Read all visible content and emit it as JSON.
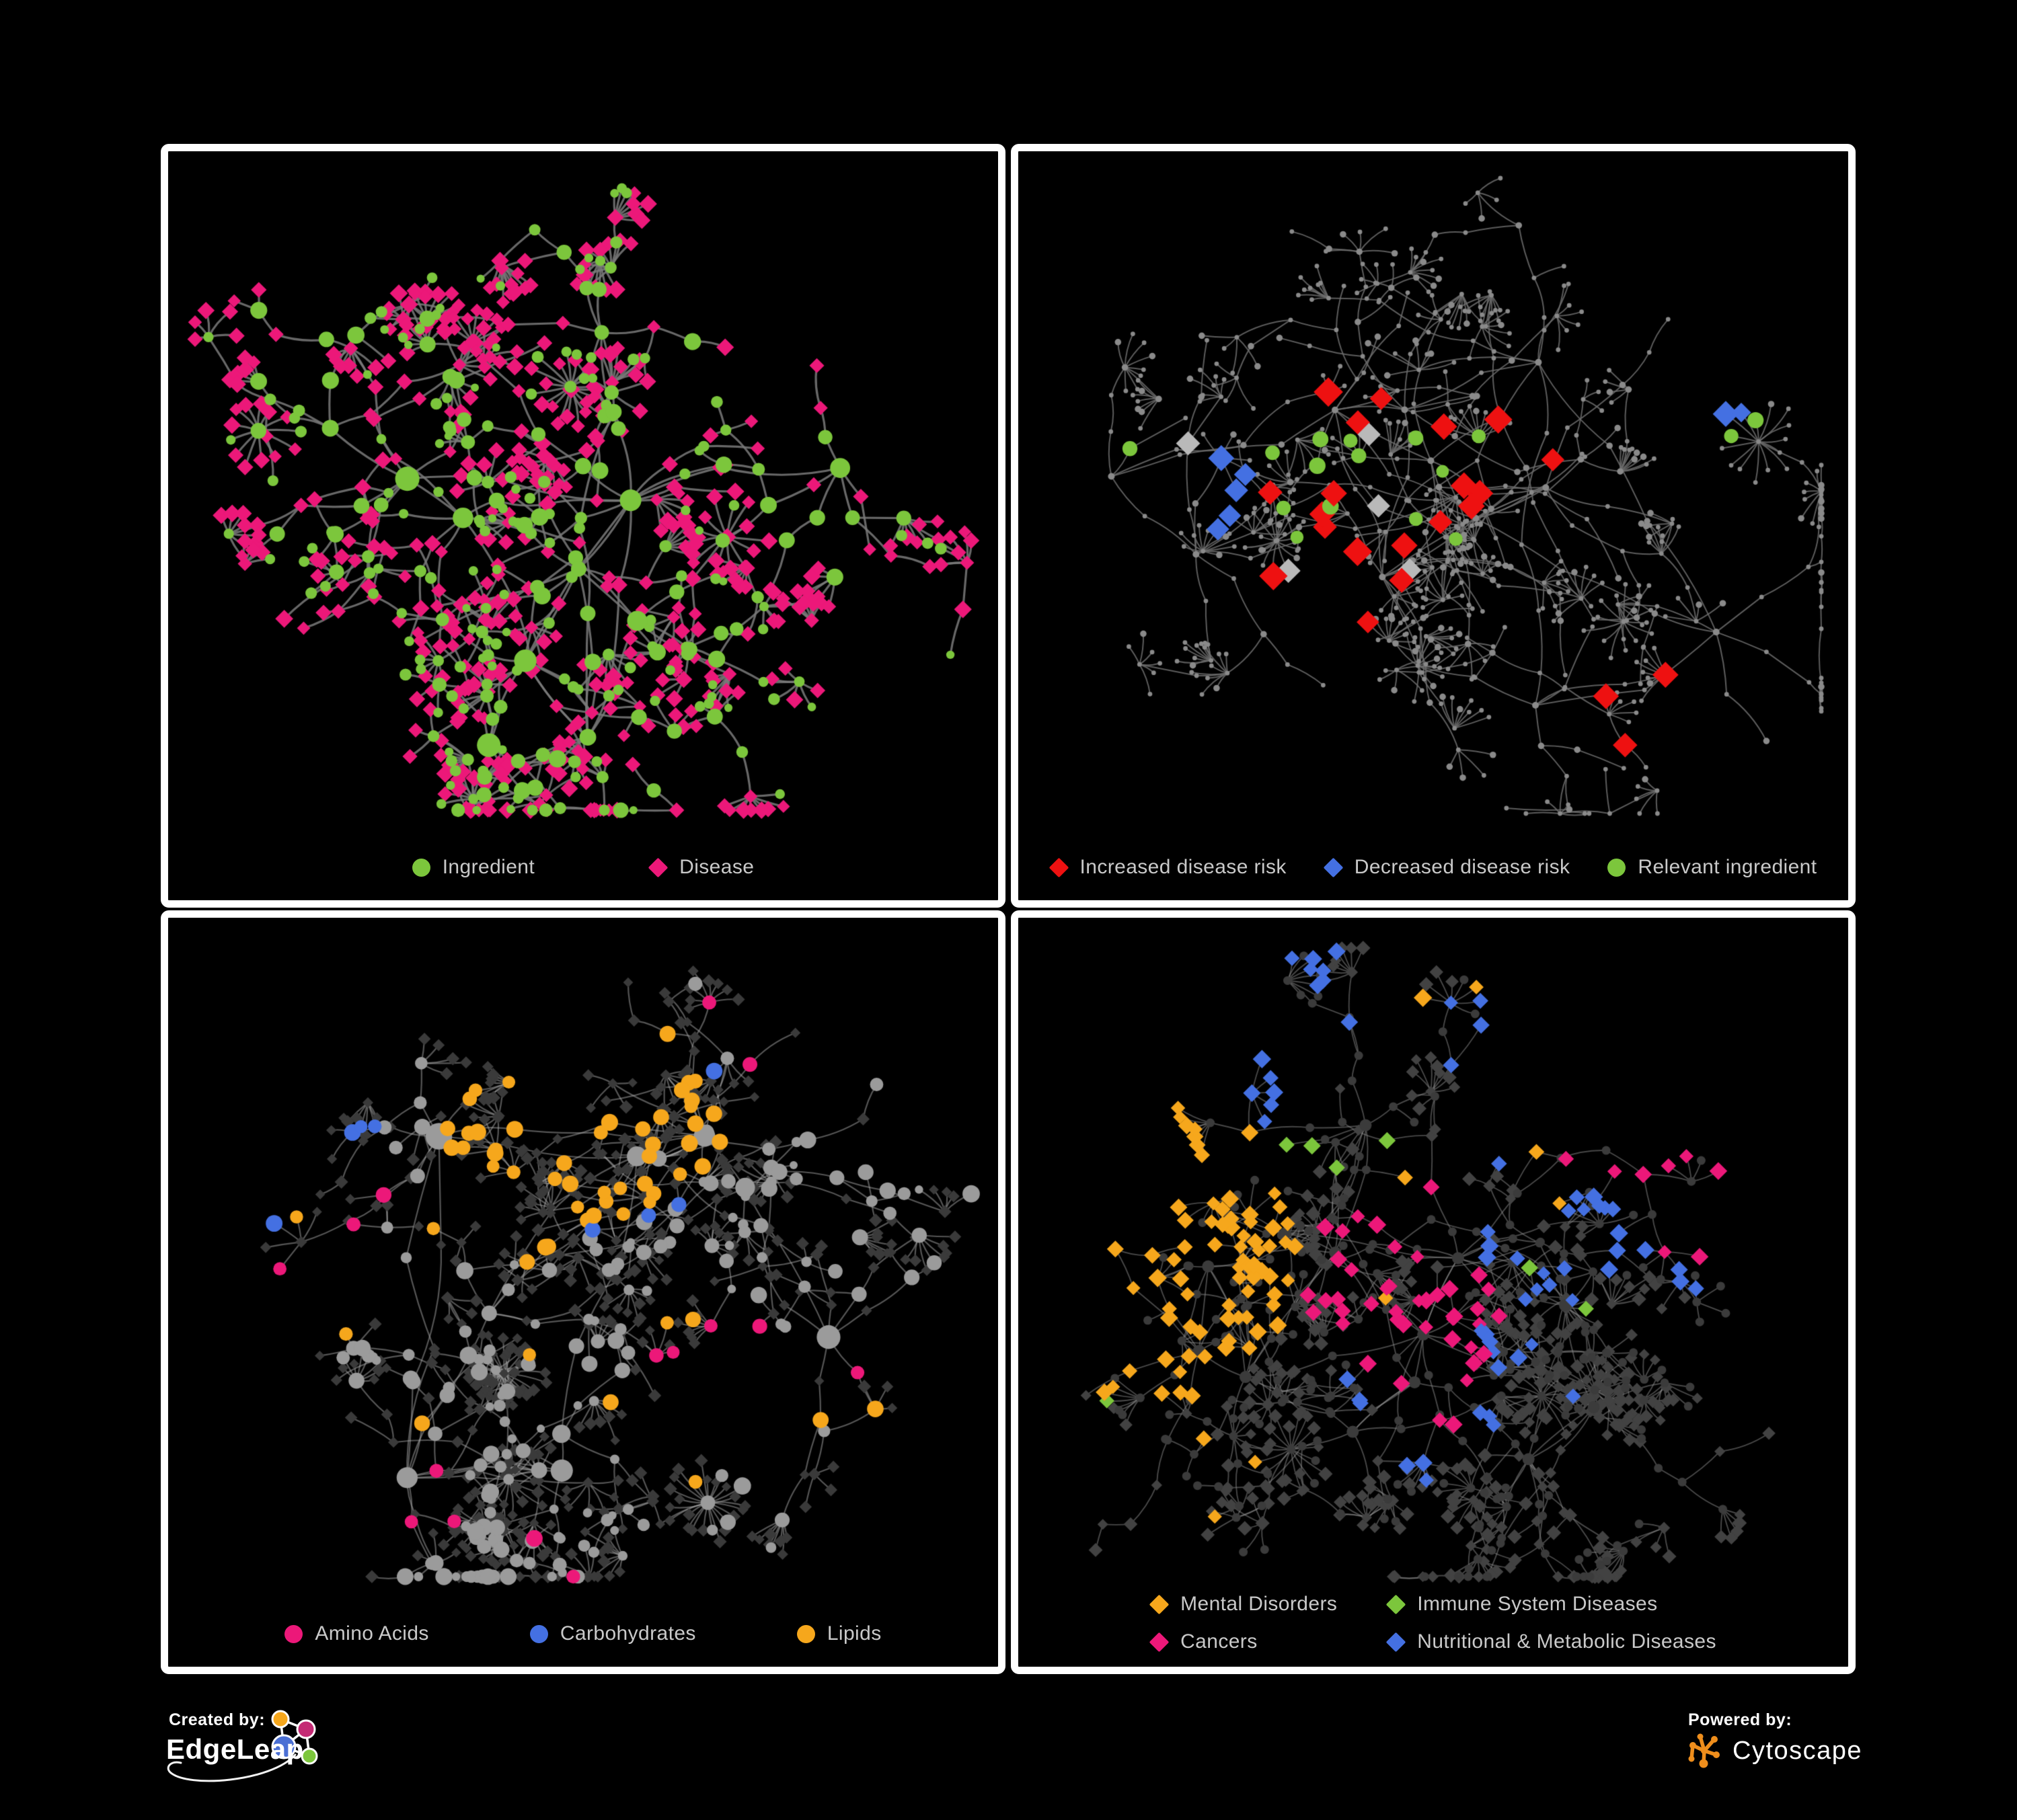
{
  "background": "#000000",
  "panel_border_color": "#ffffff",
  "legend_text_color": "#c9c9c9",
  "colors": {
    "green": "#7cc63c",
    "pink": "#ec1879",
    "red": "#ee1111",
    "blue": "#4470e2",
    "orange": "#f6a71c",
    "silver": "#b9b9b9",
    "gray_node": "#9b9b9b",
    "dark_node": "#3a3a3a"
  },
  "footer": {
    "created_by": "Created by:",
    "created_brand": "EdgeLeap",
    "powered_by": "Powered by:",
    "powered_brand": "Cytoscape",
    "cytoscape_orange": "#ef8e1c"
  },
  "panels": [
    {
      "id": "ingredient-disease",
      "legend": {
        "gap": 170,
        "items": [
          {
            "shape": "circle",
            "color": "#7cc63c",
            "label": "Ingredient"
          },
          {
            "shape": "diamond",
            "color": "#ec1879",
            "label": "Disease"
          }
        ]
      },
      "net": {
        "seed": 7,
        "hubs": 11,
        "branches": 4,
        "step": 64,
        "side": 0.33,
        "fan": 0.5,
        "fanMax": 6,
        "bursts": 3,
        "burstMax": 20,
        "area": [
          40,
          50,
          1154,
          930
        ],
        "edge": {
          "color": "#7a7a7a",
          "alpha": 0.85,
          "width": 3.2
        },
        "style": "bipartite",
        "ingredient": {
          "color": "#7cc63c"
        },
        "disease": {
          "color": "#ec1879",
          "size": 16
        },
        "marks": []
      }
    },
    {
      "id": "disease-risk",
      "legend": {
        "gap": 56,
        "items": [
          {
            "shape": "diamond",
            "color": "#ee1111",
            "label": "Increased disease risk"
          },
          {
            "shape": "diamond",
            "color": "#4470e2",
            "label": "Decreased disease risk"
          },
          {
            "shape": "circle",
            "color": "#7cc63c",
            "label": "Relevant ingredient"
          }
        ]
      },
      "net": {
        "seed": 23,
        "hubs": 13,
        "branches": 4,
        "step": 76,
        "side": 0.3,
        "fan": 0.55,
        "fanMax": 7,
        "bursts": 2,
        "burstMax": 16,
        "area": [
          40,
          40,
          1154,
          945
        ],
        "edge": {
          "color": "#6c6c6c",
          "alpha": 0.85,
          "width": 2.0
        },
        "style": "plain",
        "base": {
          "color": "#8a8a8a",
          "r": 3.4
        },
        "marks": [
          {
            "shape": "diamond",
            "color": "#ee1111",
            "count": 19,
            "size": 27,
            "spread": 0.07,
            "anchors": [
              [
                0.3,
                0.38
              ],
              [
                0.45,
                0.42
              ],
              [
                0.36,
                0.55
              ],
              [
                0.52,
                0.5
              ],
              [
                0.6,
                0.45
              ],
              [
                0.42,
                0.63
              ]
            ]
          },
          {
            "shape": "diamond",
            "color": "#ee1111",
            "count": 3,
            "size": 27,
            "spread": 0.04,
            "anchors": [
              [
                0.72,
                0.78
              ],
              [
                0.78,
                0.85
              ]
            ]
          },
          {
            "shape": "diamond",
            "color": "#4470e2",
            "count": 5,
            "size": 24,
            "spread": 0.05,
            "anchors": [
              [
                0.22,
                0.48
              ],
              [
                0.26,
                0.56
              ]
            ]
          },
          {
            "shape": "diamond",
            "color": "#4470e2",
            "count": 2,
            "size": 24,
            "spread": 0.012,
            "anchors": [
              [
                0.86,
                0.35
              ]
            ]
          },
          {
            "shape": "diamond",
            "color": "#b9b9b9",
            "count": 5,
            "size": 24,
            "spread": 0.05,
            "anchors": [
              [
                0.2,
                0.43
              ],
              [
                0.3,
                0.6
              ],
              [
                0.47,
                0.57
              ],
              [
                0.36,
                0.34
              ]
            ]
          },
          {
            "shape": "circle",
            "color": "#7cc63c",
            "count": 16,
            "size": 11,
            "spread": 0.1,
            "anchors": [
              [
                0.2,
                0.42
              ],
              [
                0.3,
                0.37
              ],
              [
                0.45,
                0.5
              ],
              [
                0.27,
                0.52
              ],
              [
                0.55,
                0.42
              ],
              [
                0.83,
                0.37
              ]
            ]
          }
        ]
      }
    },
    {
      "id": "nutrient-classes",
      "legend": {
        "gap": 150,
        "items": [
          {
            "shape": "circle",
            "color": "#ec1879",
            "label": "Amino Acids"
          },
          {
            "shape": "circle",
            "color": "#4470e2",
            "label": "Carbohydrates"
          },
          {
            "shape": "circle",
            "color": "#f6a71c",
            "label": "Lipids"
          }
        ]
      },
      "net": {
        "seed": 41,
        "hubs": 11,
        "branches": 4,
        "step": 66,
        "side": 0.33,
        "fan": 0.5,
        "fanMax": 6,
        "bursts": 3,
        "burstMax": 30,
        "area": [
          40,
          50,
          1154,
          930
        ],
        "edge": {
          "color": "#a9a9a9",
          "alpha": 0.5,
          "width": 2.2
        },
        "style": "classes",
        "ingredient": {
          "color": "#9b9b9b"
        },
        "disease": {
          "color": "#3a3a3a",
          "size": 12
        },
        "marks": [
          {
            "shape": "circle",
            "color": "#f6a71c",
            "count": 46,
            "size": 11,
            "on": "i",
            "spread": 0.06,
            "anchors": [
              [
                0.47,
                0.27
              ],
              [
                0.56,
                0.33
              ],
              [
                0.42,
                0.38
              ],
              [
                0.52,
                0.22
              ]
            ]
          },
          {
            "shape": "circle",
            "color": "#f6a71c",
            "count": 12,
            "size": 11,
            "on": "i",
            "spread": 0.28,
            "anchors": [
              [
                0.55,
                0.55
              ],
              [
                0.35,
                0.6
              ],
              [
                0.72,
                0.5
              ]
            ]
          },
          {
            "shape": "circle",
            "color": "#4470e2",
            "count": 8,
            "size": 11,
            "on": "i",
            "spread": 0.07,
            "anchors": [
              [
                0.51,
                0.31
              ],
              [
                0.58,
                0.36
              ],
              [
                0.1,
                0.2
              ]
            ]
          },
          {
            "shape": "circle",
            "color": "#ec1879",
            "count": 15,
            "size": 11,
            "on": "i",
            "spread": 0.06,
            "anchors": [
              [
                0.25,
                0.74
              ],
              [
                0.3,
                0.87
              ],
              [
                0.69,
                0.67
              ],
              [
                0.75,
                0.72
              ],
              [
                0.67,
                0.12
              ],
              [
                0.11,
                0.48
              ],
              [
                0.02,
                0.28
              ],
              [
                0.45,
                0.96
              ]
            ]
          }
        ]
      }
    },
    {
      "id": "disease-categories",
      "legend": {
        "layout": "grid",
        "items": [
          {
            "shape": "diamond",
            "color": "#f6a71c",
            "label": "Mental Disorders"
          },
          {
            "shape": "diamond",
            "color": "#7cc63c",
            "label": "Immune System Diseases"
          },
          {
            "shape": "diamond",
            "color": "#ec1879",
            "label": "Cancers"
          },
          {
            "shape": "diamond",
            "color": "#4470e2",
            "label": "Nutritional & Metabolic Diseases"
          }
        ]
      },
      "net": {
        "seed": 59,
        "hubs": 13,
        "branches": 5,
        "step": 62,
        "side": 0.32,
        "fan": 0.5,
        "fanMax": 6,
        "bursts": 3,
        "burstMax": 20,
        "area": [
          40,
          45,
          1154,
          935
        ],
        "edge": {
          "color": "#8f8f8f",
          "alpha": 0.5,
          "width": 1.9
        },
        "style": "categories",
        "ingredient": {
          "color": "#3b3b3b"
        },
        "disease": {
          "color": "#424242",
          "size": 13
        },
        "marks": [
          {
            "shape": "diamond",
            "color": "#f6a71c",
            "count": 75,
            "size": 17,
            "on": "d",
            "spread": 0.055,
            "anchors": [
              [
                0.16,
                0.5
              ],
              [
                0.21,
                0.56
              ],
              [
                0.12,
                0.44
              ],
              [
                0.24,
                0.48
              ]
            ]
          },
          {
            "shape": "diamond",
            "color": "#f6a71c",
            "count": 9,
            "size": 17,
            "on": "d",
            "spread": 0.3,
            "anchors": [
              [
                0.45,
                0.3
              ],
              [
                0.3,
                0.8
              ],
              [
                0.59,
                0.09
              ]
            ]
          },
          {
            "shape": "diamond",
            "color": "#ec1879",
            "count": 42,
            "size": 17,
            "on": "d",
            "spread": 0.07,
            "anchors": [
              [
                0.4,
                0.62
              ],
              [
                0.48,
                0.7
              ],
              [
                0.52,
                0.6
              ],
              [
                0.44,
                0.5
              ]
            ]
          },
          {
            "shape": "diamond",
            "color": "#ec1879",
            "count": 8,
            "size": 17,
            "on": "d",
            "spread": 0.035,
            "anchors": [
              [
                0.95,
                0.22
              ],
              [
                0.88,
                0.16
              ]
            ]
          },
          {
            "shape": "diamond",
            "color": "#4470e2",
            "count": 60,
            "size": 17,
            "on": "d",
            "spread": 0.11,
            "anchors": [
              [
                0.75,
                0.1
              ],
              [
                0.85,
                0.4
              ],
              [
                0.5,
                0.73
              ],
              [
                0.3,
                0.06
              ],
              [
                0.9,
                0.2
              ],
              [
                0.65,
                0.55
              ],
              [
                0.58,
                0.66
              ],
              [
                0.16,
                0.2
              ]
            ]
          },
          {
            "shape": "diamond",
            "color": "#7cc63c",
            "count": 7,
            "size": 17,
            "on": "d",
            "spread": 0.2,
            "anchors": [
              [
                0.38,
                0.28
              ],
              [
                0.3,
                0.48
              ],
              [
                0.57,
                0.6
              ]
            ]
          }
        ]
      }
    }
  ]
}
